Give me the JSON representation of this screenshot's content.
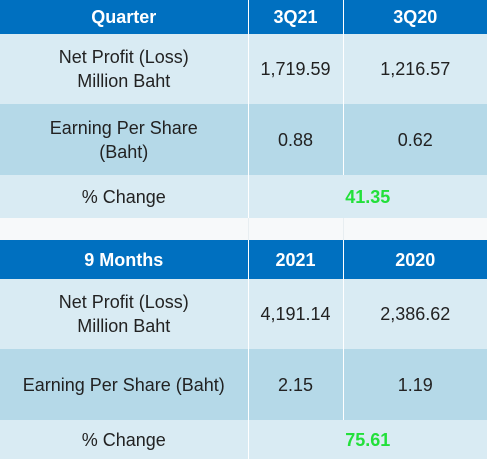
{
  "quarter_table": {
    "header": {
      "label": "Quarter",
      "col1": "3Q21",
      "col2": "3Q20"
    },
    "rows": [
      {
        "label_line1": "Net Profit (Loss)",
        "label_line2": "Million Baht",
        "v1": "1,719.59",
        "v2": "1,216.57"
      },
      {
        "label_line1": "Earning Per Share",
        "label_line2": "(Baht)",
        "v1": "0.88",
        "v2": "0.62"
      }
    ],
    "change": {
      "label": "% Change",
      "value": "41.35"
    }
  },
  "nine_month_table": {
    "header": {
      "label": "9 Months",
      "col1": "2021",
      "col2": "2020"
    },
    "rows": [
      {
        "label_line1": "Net Profit (Loss)",
        "label_line2": "Million Baht",
        "v1": "4,191.14",
        "v2": "2,386.62"
      },
      {
        "label": "Earning Per Share (Baht)",
        "v1": "2.15",
        "v2": "1.19"
      }
    ],
    "change": {
      "label": "% Change",
      "value": "75.61"
    }
  },
  "colors": {
    "header_bg": "#0070c0",
    "header_text": "#ffffff",
    "row_light": "#d9ebf3",
    "row_dark": "#b5d9e8",
    "change_value": "#22e03a"
  }
}
